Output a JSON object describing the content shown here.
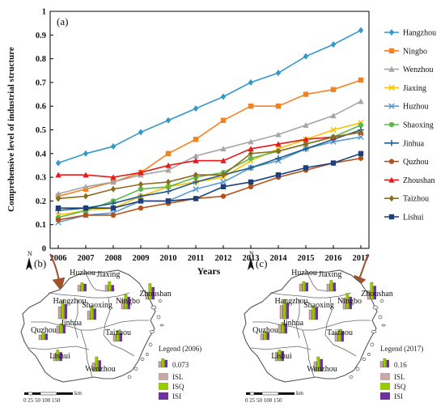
{
  "colors": {
    "Hangzhou": "#3399cc",
    "Ningbo": "#f58220",
    "Wenzhou": "#a6a6a6",
    "Jiaxing": "#ffc000",
    "Huzhou": "#5b9bd5",
    "Shaoxing": "#5cb84a",
    "Jinhua": "#1f5f8b",
    "Quzhou": "#b3521e",
    "Zhoushan": "#e41a1c",
    "Taizhou": "#8c6d1f",
    "Lishui": "#1f3f7a",
    "ISL": "#c8a7a7",
    "ISQ": "#99cc00",
    "ISI": "#7030a0"
  },
  "chart_data": [
    {
      "type": "line",
      "panel_label": "(a)",
      "xlabel": "Years",
      "ylabel": "Comprehensive level of industrial structure",
      "ylim": [
        0,
        1
      ],
      "yticks": [
        "0",
        "0.1",
        "0.2",
        "0.3",
        "0.4",
        "0.5",
        "0.6",
        "0.7",
        "0.8",
        "0.9",
        "1"
      ],
      "legend_position": "right",
      "x": [
        "2006",
        "2007",
        "2008",
        "2009",
        "2010",
        "2011",
        "2012",
        "2013",
        "2014",
        "2015",
        "2016",
        "2017"
      ],
      "series": [
        {
          "name": "Hangzhou",
          "marker": "diamond",
          "values": [
            0.36,
            0.4,
            0.43,
            0.49,
            0.54,
            0.59,
            0.64,
            0.7,
            0.74,
            0.81,
            0.86,
            0.92
          ]
        },
        {
          "name": "Ningbo",
          "marker": "square",
          "values": [
            0.22,
            0.25,
            0.28,
            0.32,
            0.4,
            0.46,
            0.54,
            0.6,
            0.6,
            0.65,
            0.67,
            0.71
          ]
        },
        {
          "name": "Wenzhou",
          "marker": "triangle",
          "values": [
            0.23,
            0.26,
            0.28,
            0.31,
            0.33,
            0.39,
            0.42,
            0.45,
            0.48,
            0.52,
            0.56,
            0.62
          ]
        },
        {
          "name": "Jiaxing",
          "marker": "x",
          "values": [
            0.14,
            0.16,
            0.17,
            0.22,
            0.26,
            0.28,
            0.3,
            0.37,
            0.42,
            0.46,
            0.5,
            0.53
          ]
        },
        {
          "name": "Huzhou",
          "marker": "x",
          "values": [
            0.11,
            0.14,
            0.15,
            0.2,
            0.2,
            0.25,
            0.28,
            0.34,
            0.37,
            0.42,
            0.45,
            0.47
          ]
        },
        {
          "name": "Shaoxing",
          "marker": "circle",
          "values": [
            0.13,
            0.16,
            0.2,
            0.25,
            0.26,
            0.3,
            0.32,
            0.38,
            0.41,
            0.44,
            0.47,
            0.52
          ]
        },
        {
          "name": "Jinhua",
          "marker": "plus",
          "values": [
            0.16,
            0.17,
            0.19,
            0.22,
            0.24,
            0.28,
            0.31,
            0.34,
            0.38,
            0.42,
            0.46,
            0.5
          ]
        },
        {
          "name": "Quzhou",
          "marker": "circle",
          "values": [
            0.12,
            0.14,
            0.14,
            0.17,
            0.19,
            0.21,
            0.22,
            0.26,
            0.3,
            0.33,
            0.36,
            0.38
          ]
        },
        {
          "name": "Zhoushan",
          "marker": "triangle",
          "values": [
            0.31,
            0.31,
            0.3,
            0.32,
            0.35,
            0.37,
            0.37,
            0.42,
            0.44,
            0.46,
            0.47,
            0.49
          ]
        },
        {
          "name": "Taizhou",
          "marker": "diamond",
          "values": [
            0.21,
            0.22,
            0.25,
            0.27,
            0.28,
            0.31,
            0.31,
            0.4,
            0.41,
            0.44,
            0.47,
            0.49
          ]
        },
        {
          "name": "Lishui",
          "marker": "square",
          "values": [
            0.17,
            0.17,
            0.17,
            0.2,
            0.2,
            0.21,
            0.26,
            0.28,
            0.31,
            0.34,
            0.36,
            0.4
          ]
        }
      ]
    },
    {
      "type": "bar",
      "panel_label": "(b)",
      "north_label": "N",
      "legend_title": "Legend  (2006)",
      "legend_scale_value": "0.073",
      "legend_entries": [
        "ISL",
        "ISQ",
        "ISI"
      ],
      "scale_ticks": "0 25 50    100   150",
      "scale_unit": "km",
      "cities": [
        {
          "name": "Huzhou",
          "bars": [
            0.25,
            0.35,
            0.3
          ]
        },
        {
          "name": "Jiaxing",
          "bars": [
            0.25,
            0.4,
            0.25
          ]
        },
        {
          "name": "Hangzhou",
          "bars": [
            0.5,
            0.75,
            0.6
          ]
        },
        {
          "name": "Shaoxing",
          "bars": [
            0.35,
            0.55,
            0.45
          ]
        },
        {
          "name": "Ningbo",
          "bars": [
            0.4,
            0.6,
            0.5
          ]
        },
        {
          "name": "Zhoushan",
          "bars": [
            0.3,
            0.65,
            0.5
          ]
        },
        {
          "name": "Jinhua",
          "bars": [
            0.3,
            0.4,
            0.35
          ]
        },
        {
          "name": "Quzhou",
          "bars": [
            0.2,
            0.3,
            0.25
          ]
        },
        {
          "name": "Taizhou",
          "bars": [
            0.3,
            0.45,
            0.35
          ]
        },
        {
          "name": "Lishui",
          "bars": [
            0.3,
            0.45,
            0.35
          ]
        },
        {
          "name": "Wenzhou",
          "bars": [
            0.35,
            0.6,
            0.45
          ]
        }
      ]
    },
    {
      "type": "bar",
      "panel_label": "(c)",
      "north_label": "N",
      "legend_title": "Legend  (2017)",
      "legend_scale_value": "0.16",
      "legend_entries": [
        "ISL",
        "ISQ",
        "ISI"
      ],
      "scale_ticks": "0 25 50    100   150",
      "scale_unit": "km",
      "cities": [
        {
          "name": "Huzhou",
          "bars": [
            0.3,
            0.4,
            0.35
          ]
        },
        {
          "name": "Jiaxing",
          "bars": [
            0.3,
            0.45,
            0.35
          ]
        },
        {
          "name": "Hangzhou",
          "bars": [
            0.55,
            0.8,
            0.65
          ]
        },
        {
          "name": "Shaoxing",
          "bars": [
            0.4,
            0.55,
            0.5
          ]
        },
        {
          "name": "Ningbo",
          "bars": [
            0.45,
            0.65,
            0.5
          ]
        },
        {
          "name": "Zhoushan",
          "bars": [
            0.35,
            0.7,
            0.55
          ]
        },
        {
          "name": "Jinhua",
          "bars": [
            0.35,
            0.45,
            0.4
          ]
        },
        {
          "name": "Quzhou",
          "bars": [
            0.25,
            0.35,
            0.3
          ]
        },
        {
          "name": "Taizhou",
          "bars": [
            0.35,
            0.5,
            0.4
          ]
        },
        {
          "name": "Lishui",
          "bars": [
            0.35,
            0.45,
            0.4
          ]
        },
        {
          "name": "Wenzhou",
          "bars": [
            0.4,
            0.6,
            0.5
          ]
        }
      ]
    }
  ]
}
